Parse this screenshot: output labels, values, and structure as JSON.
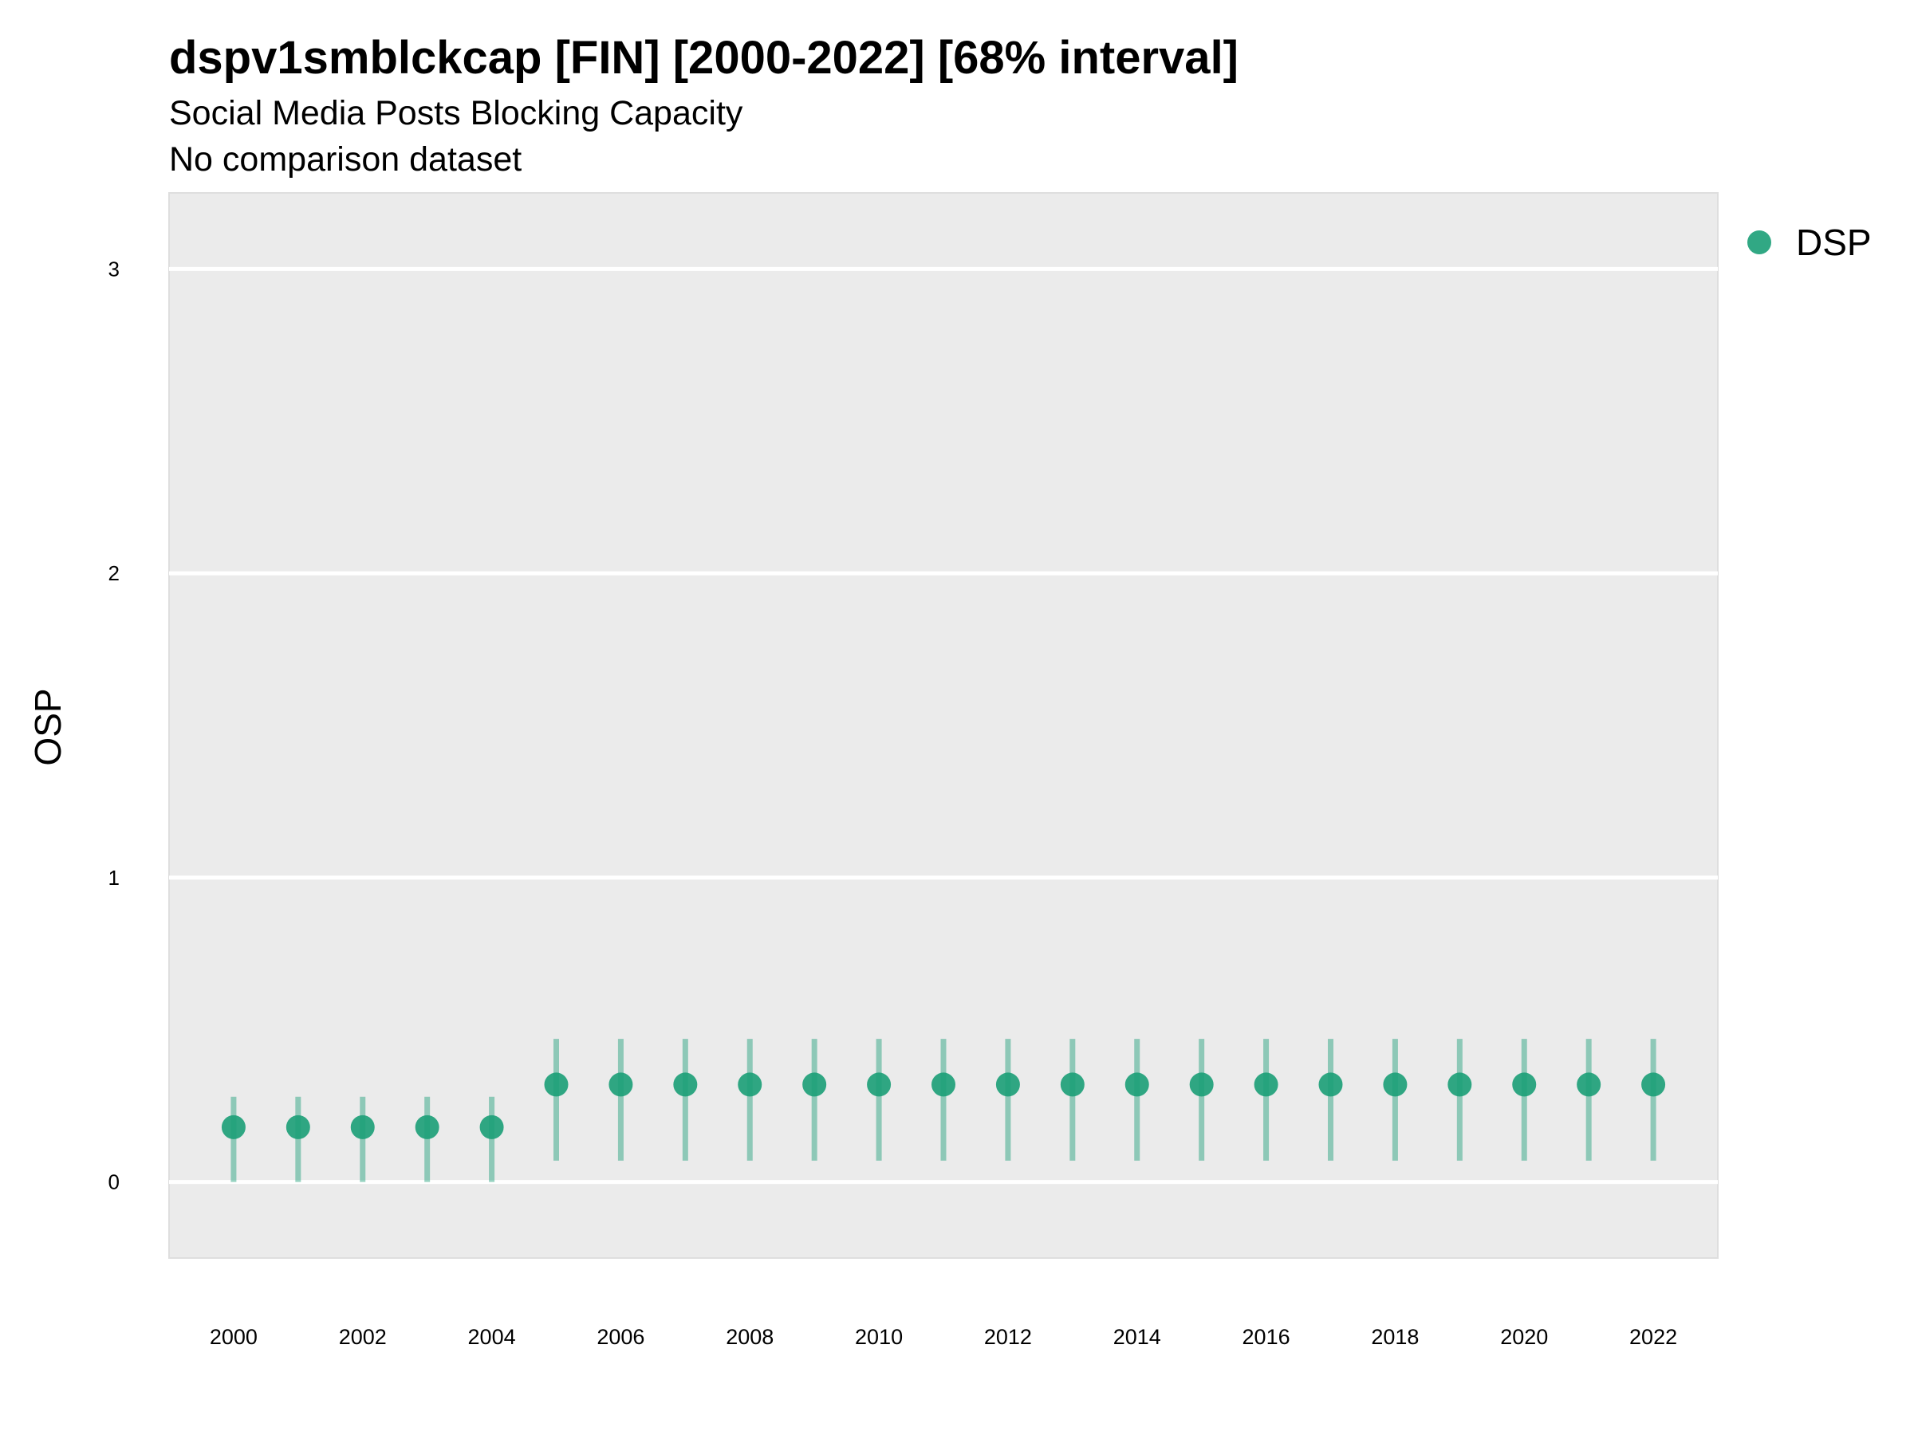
{
  "chart_data": {
    "type": "scatter",
    "title": "dspv1smblckcap [FIN] [2000-2022] [68% interval]",
    "subtitle": "Social Media Posts Blocking Capacity",
    "caption": "No comparison dataset",
    "ylabel": "OSP",
    "xlabel": "",
    "ylim": [
      -0.25,
      3.25
    ],
    "xlim": [
      1999,
      2023
    ],
    "yticks": [
      0,
      1,
      2,
      3
    ],
    "xticks": [
      2000,
      2002,
      2004,
      2006,
      2008,
      2010,
      2012,
      2014,
      2016,
      2018,
      2020,
      2022
    ],
    "grid": true,
    "legend": {
      "position": "right",
      "entries": [
        {
          "label": "DSP",
          "color": "#1b9e77"
        }
      ]
    },
    "series": [
      {
        "name": "DSP",
        "color": "#1b9e77",
        "points": [
          {
            "x": 2000,
            "y": 0.18,
            "lower": 0.0,
            "upper": 0.28
          },
          {
            "x": 2001,
            "y": 0.18,
            "lower": 0.0,
            "upper": 0.28
          },
          {
            "x": 2002,
            "y": 0.18,
            "lower": 0.0,
            "upper": 0.28
          },
          {
            "x": 2003,
            "y": 0.18,
            "lower": 0.0,
            "upper": 0.28
          },
          {
            "x": 2004,
            "y": 0.18,
            "lower": 0.0,
            "upper": 0.28
          },
          {
            "x": 2005,
            "y": 0.32,
            "lower": 0.07,
            "upper": 0.47
          },
          {
            "x": 2006,
            "y": 0.32,
            "lower": 0.07,
            "upper": 0.47
          },
          {
            "x": 2007,
            "y": 0.32,
            "lower": 0.07,
            "upper": 0.47
          },
          {
            "x": 2008,
            "y": 0.32,
            "lower": 0.07,
            "upper": 0.47
          },
          {
            "x": 2009,
            "y": 0.32,
            "lower": 0.07,
            "upper": 0.47
          },
          {
            "x": 2010,
            "y": 0.32,
            "lower": 0.07,
            "upper": 0.47
          },
          {
            "x": 2011,
            "y": 0.32,
            "lower": 0.07,
            "upper": 0.47
          },
          {
            "x": 2012,
            "y": 0.32,
            "lower": 0.07,
            "upper": 0.47
          },
          {
            "x": 2013,
            "y": 0.32,
            "lower": 0.07,
            "upper": 0.47
          },
          {
            "x": 2014,
            "y": 0.32,
            "lower": 0.07,
            "upper": 0.47
          },
          {
            "x": 2015,
            "y": 0.32,
            "lower": 0.07,
            "upper": 0.47
          },
          {
            "x": 2016,
            "y": 0.32,
            "lower": 0.07,
            "upper": 0.47
          },
          {
            "x": 2017,
            "y": 0.32,
            "lower": 0.07,
            "upper": 0.47
          },
          {
            "x": 2018,
            "y": 0.32,
            "lower": 0.07,
            "upper": 0.47
          },
          {
            "x": 2019,
            "y": 0.32,
            "lower": 0.07,
            "upper": 0.47
          },
          {
            "x": 2020,
            "y": 0.32,
            "lower": 0.07,
            "upper": 0.47
          },
          {
            "x": 2021,
            "y": 0.32,
            "lower": 0.07,
            "upper": 0.47
          },
          {
            "x": 2022,
            "y": 0.32,
            "lower": 0.07,
            "upper": 0.47
          }
        ]
      }
    ]
  }
}
